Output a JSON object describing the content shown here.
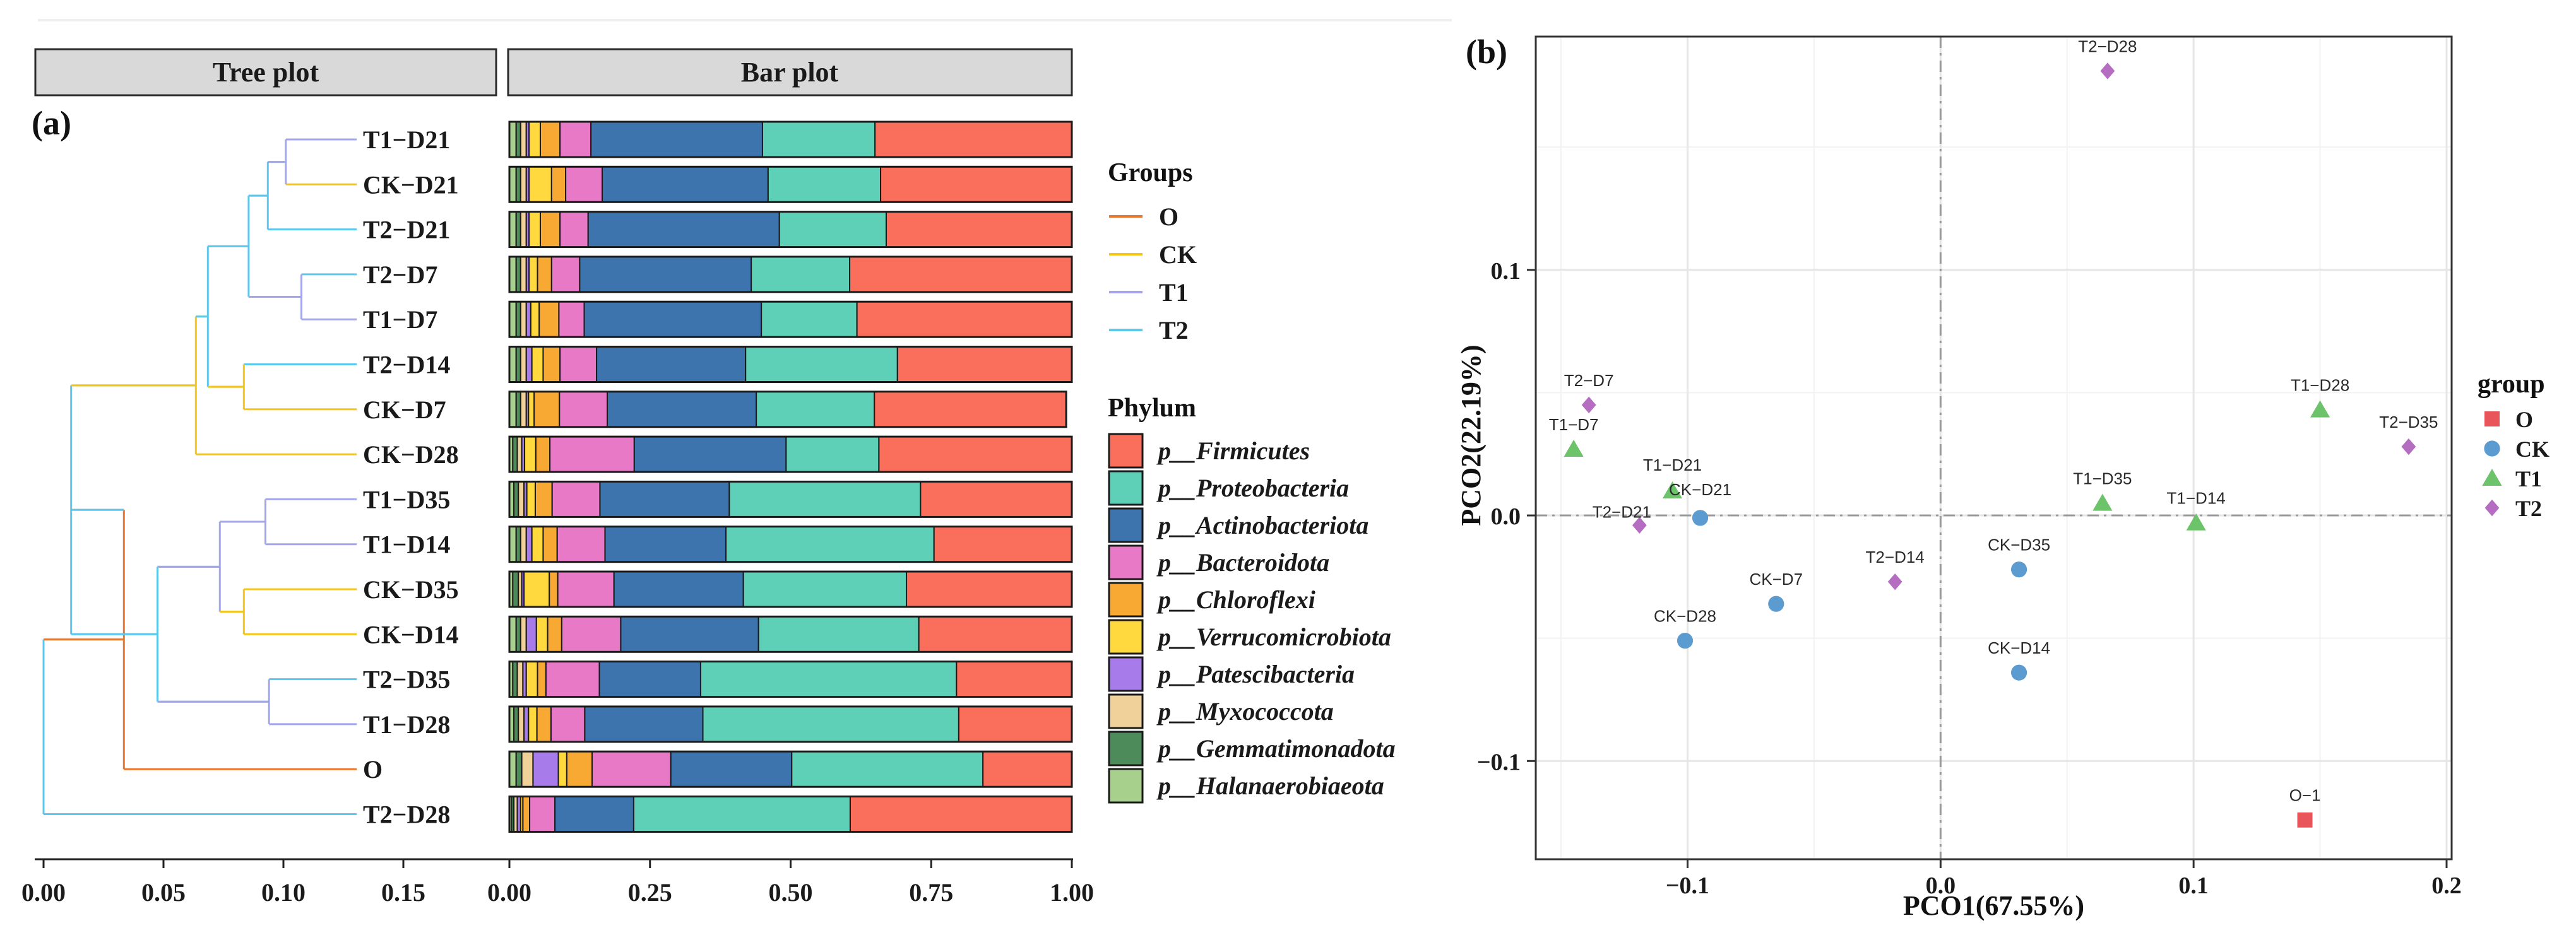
{
  "panels": {
    "a_label": "(a)",
    "b_label": "(b)",
    "tree_header": "Tree plot",
    "bar_header": "Bar plot"
  },
  "legend_a": {
    "groups_title": "Groups",
    "groups": [
      {
        "name": "O",
        "color": "#E8762C"
      },
      {
        "name": "CK",
        "color": "#F5C518"
      },
      {
        "name": "T1",
        "color": "#A3A6EC"
      },
      {
        "name": "T2",
        "color": "#5CC8EE"
      }
    ],
    "phylum_title": "Phylum"
  },
  "legend_b": {
    "title": "group",
    "items": [
      {
        "name": "O",
        "color": "#E8555A",
        "shape": "square"
      },
      {
        "name": "CK",
        "color": "#5B9BD0",
        "shape": "circle"
      },
      {
        "name": "T1",
        "color": "#6CC36A",
        "shape": "triangle"
      },
      {
        "name": "T2",
        "color": "#B56DC2",
        "shape": "diamond"
      }
    ]
  },
  "chart_data": [
    {
      "type": "dendrogram",
      "title": "Tree plot",
      "xlim": [
        0,
        0.17
      ],
      "x_ticks": [
        "0.00",
        "0.05",
        "0.10",
        "0.15"
      ],
      "leaves": [
        "T1-D21",
        "CK-D21",
        "T2-D21",
        "T2-D7",
        "T1-D7",
        "T2-D14",
        "CK-D7",
        "CK-D28",
        "T1-D35",
        "T1-D14",
        "CK-D35",
        "CK-D14",
        "T2-D35",
        "T1-D28",
        "O",
        "T2-D28"
      ],
      "leaf_labels": [
        "T1−D21",
        "CK−D21",
        "T2−D21",
        "T2−D7",
        "T1−D7",
        "T2−D14",
        "CK−D7",
        "CK−D28",
        "T1−D35",
        "T1−D14",
        "CK−D35",
        "CK−D14",
        "T2−D35",
        "T1−D28",
        "O",
        "T2−D28"
      ],
      "leaf_groups": [
        "T1",
        "CK",
        "T2",
        "T2",
        "T1",
        "T2",
        "CK",
        "CK",
        "T1",
        "T1",
        "CK",
        "CK",
        "T2",
        "T1",
        "O",
        "T2"
      ],
      "merges": [
        {
          "id": "n1",
          "left": "T1-D21",
          "right": "CK-D21",
          "height": 0.101,
          "group": "T1"
        },
        {
          "id": "n2",
          "left": "n1",
          "right": "T2-D21",
          "height": 0.0935,
          "group": "T2"
        },
        {
          "id": "n3",
          "left": "T2-D7",
          "right": "T1-D7",
          "height": 0.1075,
          "group": "T1"
        },
        {
          "id": "n4",
          "left": "n2",
          "right": "n3",
          "height": 0.0855,
          "group": "T2"
        },
        {
          "id": "n5",
          "left": "T2-D14",
          "right": "CK-D7",
          "height": 0.0835,
          "group": "CK"
        },
        {
          "id": "n6",
          "left": "n4",
          "right": "n5",
          "height": 0.0685,
          "group": "T2"
        },
        {
          "id": "n7",
          "left": "n6",
          "right": "CK-D28",
          "height": 0.0635,
          "group": "CK"
        },
        {
          "id": "n8",
          "left": "T1-D35",
          "right": "T1-D14",
          "height": 0.0925,
          "group": "T1"
        },
        {
          "id": "n9",
          "left": "CK-D35",
          "right": "CK-D14",
          "height": 0.0835,
          "group": "CK"
        },
        {
          "id": "n10",
          "left": "n8",
          "right": "n9",
          "height": 0.0735,
          "group": "T1"
        },
        {
          "id": "n11",
          "left": "T2-D35",
          "right": "T1-D28",
          "height": 0.094,
          "group": "T1"
        },
        {
          "id": "n12",
          "left": "n10",
          "right": "n11",
          "height": 0.0475,
          "group": "T2"
        },
        {
          "id": "n13",
          "left": "n7",
          "right": "n12",
          "height": 0.0115,
          "group": "T2"
        },
        {
          "id": "n14",
          "left": "n13",
          "right": "O",
          "height": 0.0335,
          "group": "O"
        },
        {
          "id": "n15",
          "left": "n14",
          "right": "T2-D28",
          "height": 0.0,
          "group": "T2"
        }
      ]
    },
    {
      "type": "bar",
      "orientation": "horizontal",
      "stacked": true,
      "title": "Bar plot",
      "xlim": [
        0,
        1
      ],
      "x_ticks": [
        "0.00",
        "0.25",
        "0.50",
        "0.75",
        "1.00"
      ],
      "categories": [
        "T1-D21",
        "CK-D21",
        "T2-D21",
        "T2-D7",
        "T1-D7",
        "T2-D14",
        "CK-D7",
        "CK-D28",
        "T1-D35",
        "T1-D14",
        "CK-D35",
        "CK-D14",
        "T2-D35",
        "T1-D28",
        "O",
        "T2-D28"
      ],
      "legend_title": "Phylum",
      "series": [
        {
          "name": "p__Halanaerobiaeota",
          "label": "p__Halanaerobiaeota",
          "color": "#A8D08D",
          "values": [
            0.012,
            0.012,
            0.012,
            0.012,
            0.012,
            0.012,
            0.012,
            0.006,
            0.008,
            0.012,
            0.006,
            0.012,
            0.006,
            0.008,
            0.012,
            0.004
          ]
        },
        {
          "name": "p__Gemmatimonadota",
          "label": "p__Gemmatimonadota",
          "color": "#4E8B5B",
          "values": [
            0.008,
            0.008,
            0.008,
            0.008,
            0.008,
            0.008,
            0.008,
            0.008,
            0.008,
            0.008,
            0.01,
            0.008,
            0.008,
            0.008,
            0.01,
            0.004
          ]
        },
        {
          "name": "p__Myxococcota",
          "label": "p__Myxococcota",
          "color": "#F1D19A",
          "values": [
            0.01,
            0.01,
            0.01,
            0.01,
            0.01,
            0.01,
            0.01,
            0.008,
            0.01,
            0.01,
            0.006,
            0.01,
            0.01,
            0.01,
            0.02,
            0.006
          ]
        },
        {
          "name": "p__Patescibacteria",
          "label": "p__Patescibacteria",
          "color": "#A77BEA",
          "values": [
            0.005,
            0.005,
            0.005,
            0.005,
            0.008,
            0.01,
            0.004,
            0.005,
            0.005,
            0.01,
            0.004,
            0.018,
            0.006,
            0.008,
            0.045,
            0.006
          ]
        },
        {
          "name": "p__Verrucomicrobiota",
          "label": "p__Verrucomicrobiota",
          "color": "#FFD93D",
          "values": [
            0.02,
            0.04,
            0.02,
            0.015,
            0.015,
            0.02,
            0.01,
            0.02,
            0.015,
            0.02,
            0.045,
            0.02,
            0.02,
            0.015,
            0.015,
            0.004
          ]
        },
        {
          "name": "p__Chloroflexi",
          "label": "p__Chloroflexi",
          "color": "#F7A933",
          "values": [
            0.035,
            0.025,
            0.035,
            0.025,
            0.035,
            0.03,
            0.045,
            0.025,
            0.03,
            0.025,
            0.015,
            0.025,
            0.015,
            0.025,
            0.045,
            0.012
          ]
        },
        {
          "name": "p__Bacteroidota",
          "label": "p__Bacteroidota",
          "color": "#E879C7",
          "values": [
            0.055,
            0.065,
            0.05,
            0.05,
            0.045,
            0.065,
            0.085,
            0.15,
            0.085,
            0.085,
            0.1,
            0.105,
            0.095,
            0.06,
            0.14,
            0.045
          ]
        },
        {
          "name": "p__Actinobacteriota",
          "label": "p__Actinobacteriota",
          "color": "#3E74AE",
          "values": [
            0.305,
            0.295,
            0.34,
            0.305,
            0.315,
            0.265,
            0.265,
            0.27,
            0.23,
            0.215,
            0.23,
            0.245,
            0.18,
            0.21,
            0.215,
            0.14
          ]
        },
        {
          "name": "p__Proteobacteria",
          "label": "p__Proteobacteria",
          "color": "#5ED0B8",
          "values": [
            0.2,
            0.2,
            0.19,
            0.175,
            0.17,
            0.27,
            0.21,
            0.165,
            0.34,
            0.37,
            0.29,
            0.285,
            0.455,
            0.455,
            0.34,
            0.385
          ]
        },
        {
          "name": "p__Firmicutes",
          "label": "p__Firmicutes",
          "color": "#FA6F5C",
          "values": [
            0.35,
            0.34,
            0.33,
            0.395,
            0.382,
            0.31,
            0.341,
            0.343,
            0.269,
            0.245,
            0.294,
            0.272,
            0.205,
            0.201,
            0.158,
            0.394
          ]
        }
      ]
    },
    {
      "type": "scatter",
      "title": "",
      "xlabel": "PCO1(67.55%)",
      "ylabel": "PCO2(22.19%)",
      "xlim": [
        -0.16,
        0.202
      ],
      "ylim": [
        -0.14,
        0.195
      ],
      "x_ticks": [
        -0.1,
        0.0,
        0.1,
        0.2
      ],
      "x_tick_labels": [
        "−0.1",
        "0.0",
        "0.1",
        "0.2"
      ],
      "y_ticks": [
        -0.1,
        0.0,
        0.1
      ],
      "y_tick_labels": [
        "−0.1",
        "0.0",
        "0.1"
      ],
      "reference_lines": {
        "x": 0.0,
        "y": 0.0
      },
      "grid": true,
      "legend_title": "group",
      "points": [
        {
          "label": "T2−D28",
          "group": "T2",
          "x": 0.066,
          "y": 0.181
        },
        {
          "label": "T2−D7",
          "group": "T2",
          "x": -0.139,
          "y": 0.045
        },
        {
          "label": "T1−D7",
          "group": "T1",
          "x": -0.145,
          "y": 0.027
        },
        {
          "label": "T1−D21",
          "group": "T1",
          "x": -0.106,
          "y": 0.01
        },
        {
          "label": "CK−D21",
          "group": "CK",
          "x": -0.095,
          "y": -0.001
        },
        {
          "label": "T2−D21",
          "group": "T2",
          "x": -0.119,
          "y": -0.004
        },
        {
          "label": "T1−D28",
          "group": "T1",
          "x": 0.15,
          "y": 0.043
        },
        {
          "label": "T2−D35",
          "group": "T2",
          "x": 0.185,
          "y": 0.028
        },
        {
          "label": "T1−D35",
          "group": "T1",
          "x": 0.064,
          "y": 0.005
        },
        {
          "label": "T1−D14",
          "group": "T1",
          "x": 0.101,
          "y": -0.003
        },
        {
          "label": "T2−D14",
          "group": "T2",
          "x": -0.018,
          "y": -0.027
        },
        {
          "label": "CK−D35",
          "group": "CK",
          "x": 0.031,
          "y": -0.022
        },
        {
          "label": "CK−D7",
          "group": "CK",
          "x": -0.065,
          "y": -0.036
        },
        {
          "label": "CK−D28",
          "group": "CK",
          "x": -0.101,
          "y": -0.051
        },
        {
          "label": "CK−D14",
          "group": "CK",
          "x": 0.031,
          "y": -0.064
        },
        {
          "label": "O−1",
          "group": "O",
          "x": 0.144,
          "y": -0.124
        }
      ]
    }
  ]
}
